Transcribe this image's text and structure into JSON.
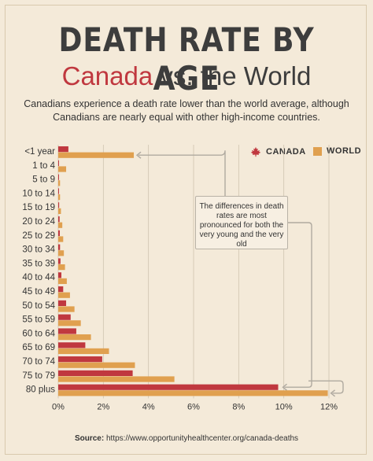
{
  "header": {
    "title": "DEATH RATE BY AGE",
    "subtitle_canada": "Canada",
    "subtitle_rest": " vs. the World",
    "intro": "Canadians experience a death rate lower than the world average, although Canadians are nearly equal with other high-income countries."
  },
  "legend": {
    "canada": "CANADA",
    "world": "WORLD"
  },
  "callout": "The differences in death rates are most pronounced for both the very young and the very old",
  "source": {
    "label": "Source:",
    "url": "https://www.opportunityhealthcenter.org/canada-deaths"
  },
  "colors": {
    "canada": "#c0383f",
    "world": "#e0a04f",
    "grid": "#cfc3b0",
    "arrow": "#b0aaa0"
  },
  "chart_data": {
    "type": "bar",
    "orientation": "horizontal",
    "categories": [
      "<1 year",
      "1 to 4",
      "5 to 9",
      "10 to 14",
      "15 to 19",
      "20 to 24",
      "25 to 29",
      "30 to 34",
      "35 to 39",
      "40 to 44",
      "45 to 49",
      "50 to 54",
      "55 to 59",
      "60 to 64",
      "65 to 69",
      "70 to 74",
      "75 to 79",
      "80 plus"
    ],
    "series": [
      {
        "name": "CANADA",
        "values": [
          0.45,
          0.02,
          0.01,
          0.01,
          0.04,
          0.06,
          0.07,
          0.08,
          0.1,
          0.14,
          0.22,
          0.35,
          0.55,
          0.8,
          1.2,
          1.95,
          3.3,
          9.75
        ]
      },
      {
        "name": "WORLD",
        "values": [
          3.35,
          0.35,
          0.08,
          0.08,
          0.12,
          0.18,
          0.22,
          0.25,
          0.3,
          0.38,
          0.52,
          0.72,
          1.0,
          1.45,
          2.25,
          3.4,
          5.15,
          11.95
        ]
      }
    ],
    "xlim": [
      0,
      12
    ],
    "xticks": [
      "0%",
      "2%",
      "4%",
      "6%",
      "8%",
      "10%",
      "12%"
    ],
    "grid": true,
    "legend_position": "top-right"
  }
}
